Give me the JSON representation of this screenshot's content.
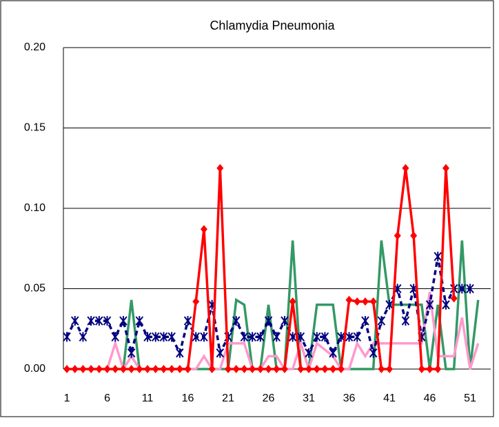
{
  "chart_data": {
    "type": "line",
    "title": "Chlamydia Pneumonia",
    "x": [
      1,
      2,
      3,
      4,
      5,
      6,
      7,
      8,
      9,
      10,
      11,
      12,
      13,
      14,
      15,
      16,
      17,
      18,
      19,
      20,
      21,
      22,
      23,
      24,
      25,
      26,
      27,
      28,
      29,
      30,
      31,
      32,
      33,
      34,
      35,
      36,
      37,
      38,
      39,
      40,
      41,
      42,
      43,
      44,
      45,
      46,
      47,
      48,
      49,
      50,
      51,
      52
    ],
    "xlim": [
      0.57,
      53.56
    ],
    "xticks": [
      1,
      6,
      11,
      16,
      21,
      26,
      31,
      36,
      41,
      46,
      51
    ],
    "ylim": [
      0,
      0.2
    ],
    "yticks": [
      {
        "value": 0,
        "label": "0.00"
      },
      {
        "value": 0.05,
        "label": "0.05"
      },
      {
        "value": 0.1,
        "label": "0.10"
      },
      {
        "value": 0.15,
        "label": "0.15"
      },
      {
        "value": 0.2,
        "label": "0.20"
      }
    ],
    "grid": true,
    "series": [
      {
        "color": "#339966",
        "values": [
          null,
          null,
          null,
          null,
          null,
          null,
          null,
          0,
          0.043,
          0,
          0,
          0,
          0,
          0,
          0,
          0,
          0,
          0,
          0,
          0,
          0,
          0.043,
          0.04,
          0,
          0,
          0.04,
          0,
          0,
          0.08,
          0,
          0,
          0.04,
          0.04,
          0.04,
          0,
          0,
          0,
          0,
          0,
          0.08,
          0.04,
          0.04,
          0.04,
          0.04,
          0.04,
          0,
          0.04,
          0,
          0,
          0.08,
          0,
          0.043
        ]
      },
      {
        "color": "#ff99cc",
        "values": [
          null,
          null,
          null,
          null,
          null,
          0,
          0.016,
          0,
          0.008,
          0,
          0,
          0,
          0,
          0,
          0,
          0,
          0,
          0.008,
          0,
          0,
          0.016,
          0.016,
          0.016,
          0,
          0,
          0.008,
          0.008,
          0,
          0,
          0.016,
          0,
          0.016,
          0.012,
          0.008,
          0,
          0,
          0.016,
          0.008,
          0.016,
          0.016,
          0.016,
          0.016,
          0.016,
          0.016,
          0.016,
          0.048,
          0.008,
          0.008,
          0.008,
          0.032,
          0,
          0.016
        ]
      },
      {
        "color": "#000080",
        "line_style": "dashed",
        "marker": "asterisk",
        "values": [
          0.02,
          0.03,
          0.02,
          0.03,
          0.03,
          0.03,
          0.02,
          0.03,
          0.01,
          0.03,
          0.02,
          0.02,
          0.02,
          0.02,
          0.01,
          0.03,
          0.02,
          0.02,
          0.04,
          0.01,
          0.02,
          0.03,
          0.02,
          0.02,
          0.02,
          0.03,
          0.02,
          0.03,
          0.02,
          0.02,
          0.01,
          0.02,
          0.02,
          0.01,
          0.02,
          0.02,
          0.02,
          0.03,
          0.01,
          0.03,
          0.04,
          0.05,
          0.03,
          0.05,
          0.02,
          0.04,
          0.07,
          0.04,
          0.05,
          0.05,
          0.05,
          null
        ]
      },
      {
        "color": "#ff0000",
        "marker": "diamond",
        "values": [
          0,
          0,
          0,
          0,
          0,
          0,
          0,
          0,
          0,
          0,
          0,
          0,
          0,
          0,
          0,
          0,
          0.042,
          0.087,
          0,
          0.125,
          0,
          0,
          0,
          0,
          0,
          0,
          0,
          0,
          0.042,
          0,
          0,
          0,
          0,
          0,
          0,
          0.043,
          0.042,
          0.042,
          0.042,
          0,
          0,
          0.083,
          0.125,
          0.083,
          0,
          0,
          0,
          0.125,
          0.044,
          null,
          null,
          null
        ]
      }
    ]
  }
}
